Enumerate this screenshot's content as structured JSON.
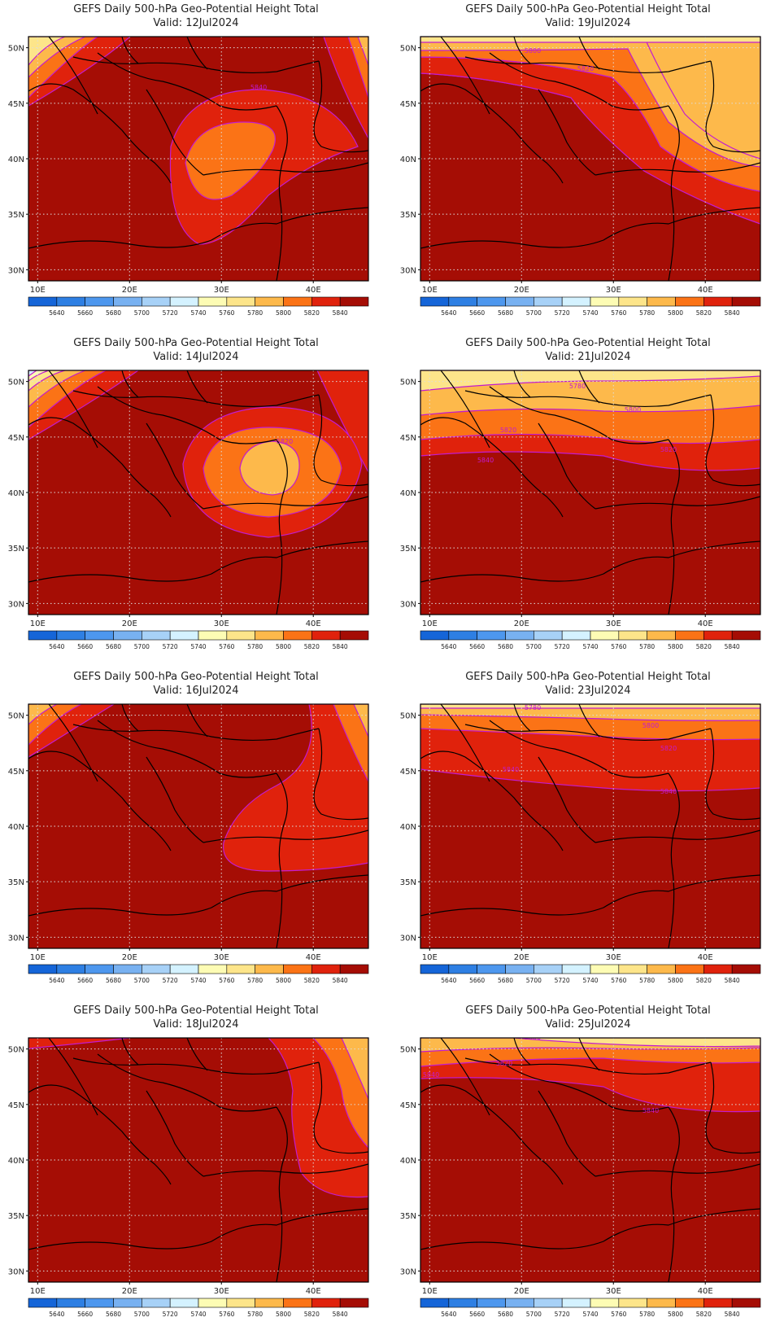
{
  "header": {
    "title": "GEFS Daily 500-hPa Geo-Potential Height Total",
    "valid_prefix": "Valid:"
  },
  "map": {
    "lat_labels": [
      "50N",
      "45N",
      "40N",
      "35N",
      "30N"
    ],
    "lon_labels": [
      "10E",
      "20E",
      "30E",
      "40E"
    ],
    "lat_ticks": [
      50,
      45,
      40,
      35,
      30
    ],
    "lon_ticks": [
      10,
      20,
      30,
      40
    ],
    "lon_range": [
      9,
      46
    ],
    "lat_range": [
      29,
      51
    ],
    "gridlines": "dotted"
  },
  "legend": {
    "levels": [
      "5640",
      "5660",
      "5680",
      "5700",
      "5720",
      "5740",
      "5760",
      "5780",
      "5800",
      "5820",
      "5840"
    ],
    "colors": [
      "#1565d8",
      "#2e7fe3",
      "#4d97ee",
      "#78b1f1",
      "#a7d1f7",
      "#d4f2ff",
      "#fdfcb4",
      "#fde58a",
      "#fdb94b",
      "#fb7316",
      "#e0220c",
      "#a50d05"
    ]
  },
  "panels": [
    {
      "valid": "12Jul2024",
      "contour_label": "5840"
    },
    {
      "valid": "19Jul2024",
      "contour_labels": [
        "5800",
        "5820"
      ]
    },
    {
      "valid": "14Jul2024",
      "contour_label": "5820"
    },
    {
      "valid": "21Jul2024",
      "contour_labels": [
        "5780",
        "5800",
        "5820",
        "5820",
        "5840"
      ]
    },
    {
      "valid": "16Jul2024"
    },
    {
      "valid": "23Jul2024",
      "contour_labels": [
        "5780",
        "5800",
        "5820",
        "5840",
        "5840"
      ]
    },
    {
      "valid": "18Jul2024"
    },
    {
      "valid": "25Jul2024",
      "contour_labels": [
        "5800",
        "5820",
        "5840",
        "5840"
      ]
    }
  ]
}
